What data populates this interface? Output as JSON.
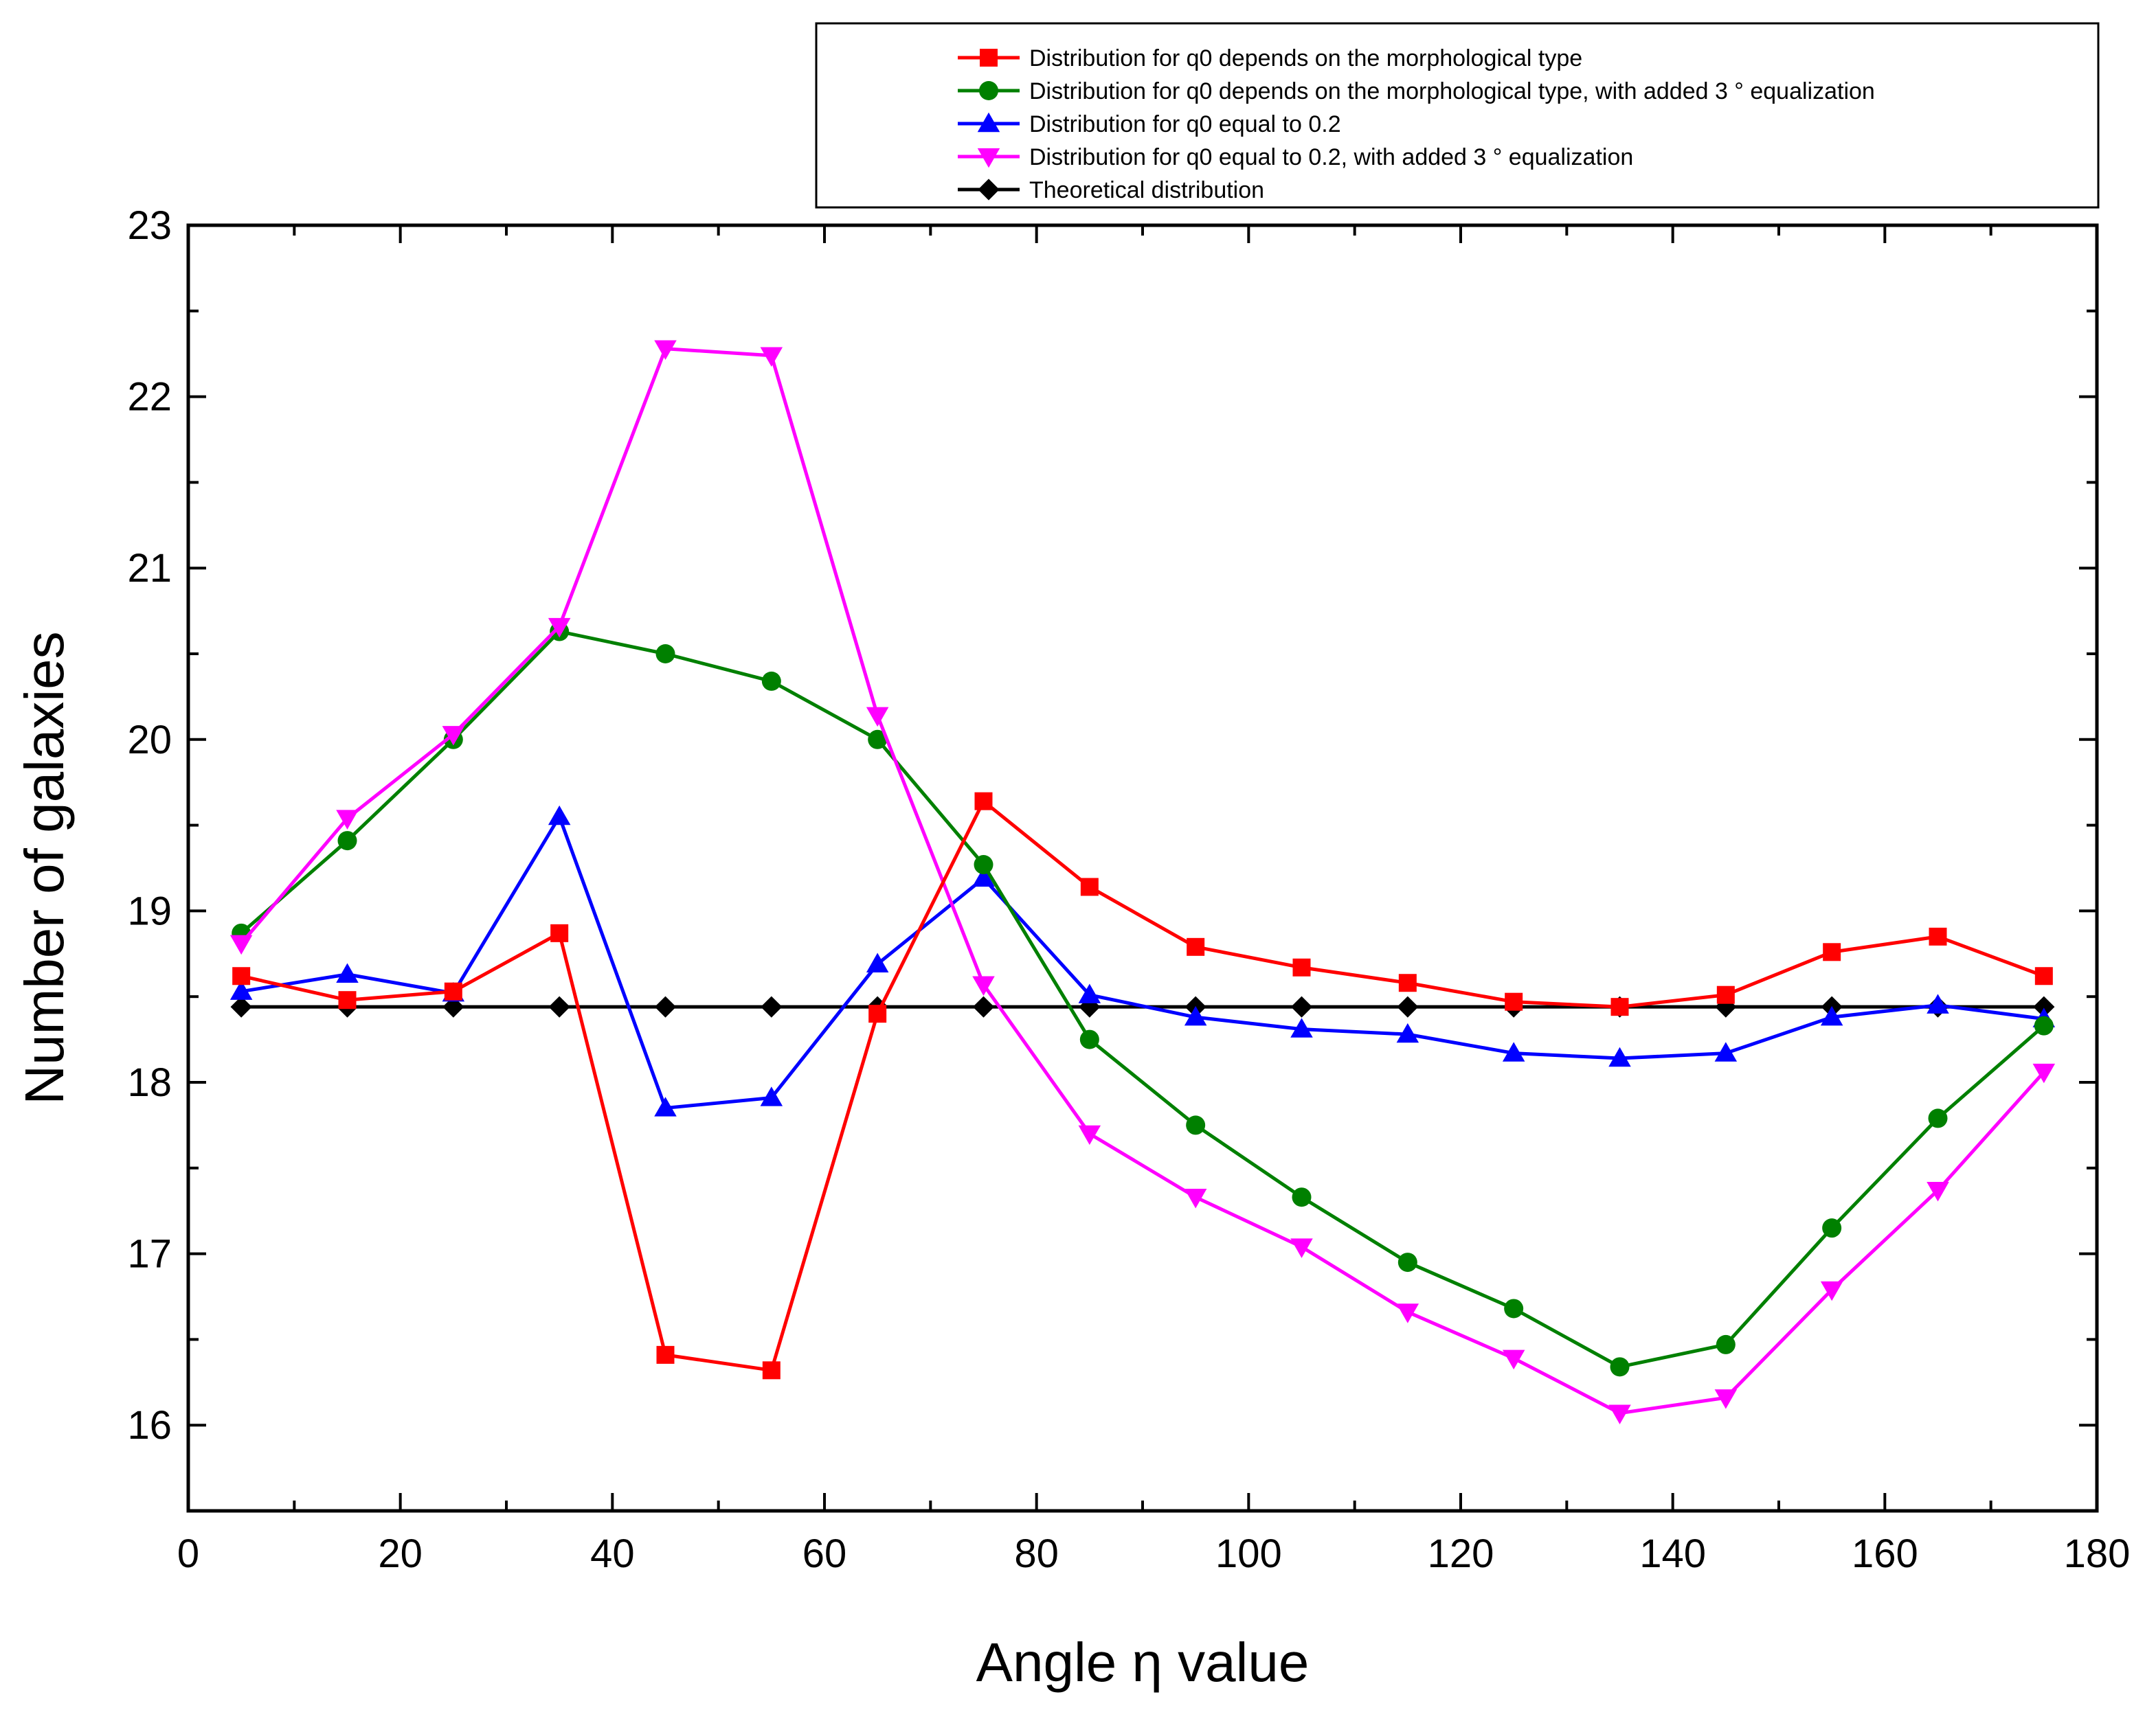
{
  "chart_data": {
    "type": "line",
    "title": "",
    "xlabel": "Angle η value",
    "ylabel": "Number of galaxies",
    "xlim": [
      0,
      180
    ],
    "ylim": [
      15.5,
      23
    ],
    "xticks": [
      0,
      20,
      40,
      60,
      80,
      100,
      120,
      140,
      160,
      180
    ],
    "yticks": [
      16,
      17,
      18,
      19,
      20,
      21,
      22,
      23
    ],
    "grid": false,
    "legend_position": "top-right",
    "x": [
      5,
      15,
      25,
      35,
      45,
      55,
      65,
      75,
      85,
      95,
      105,
      115,
      125,
      135,
      145,
      155,
      165,
      175
    ],
    "series": [
      {
        "name": "Distribution for q0 depends on the morphological type",
        "color": "#ff0000",
        "marker": "square",
        "values": [
          18.62,
          18.48,
          18.53,
          18.87,
          16.41,
          16.32,
          18.4,
          19.64,
          19.14,
          18.79,
          18.67,
          18.58,
          18.47,
          18.44,
          18.51,
          18.76,
          18.85,
          18.62
        ]
      },
      {
        "name": "Distribution for q0 depends on the morphological type, with added 3 ° equalization",
        "color": "#008000",
        "marker": "circle",
        "values": [
          18.87,
          19.41,
          20.0,
          20.63,
          20.5,
          20.34,
          20.0,
          19.27,
          18.25,
          17.75,
          17.33,
          16.95,
          16.68,
          16.34,
          16.47,
          17.15,
          17.79,
          18.33
        ]
      },
      {
        "name": "Distribution for q0 equal to 0.2",
        "color": "#0000ff",
        "marker": "triangle-up",
        "values": [
          18.53,
          18.63,
          18.52,
          19.55,
          17.85,
          17.91,
          18.69,
          19.19,
          18.51,
          18.38,
          18.31,
          18.28,
          18.17,
          18.14,
          18.17,
          18.38,
          18.45,
          18.37
        ]
      },
      {
        "name": "Distribution for q0 equal to 0.2, with added 3 ° equalization",
        "color": "#ff00ff",
        "marker": "triangle-down",
        "values": [
          18.81,
          19.54,
          20.03,
          20.66,
          22.28,
          22.24,
          20.14,
          18.57,
          17.7,
          17.33,
          17.04,
          16.66,
          16.39,
          16.07,
          16.16,
          16.79,
          17.37,
          18.06
        ]
      },
      {
        "name": "Theoretical distribution",
        "color": "#000000",
        "marker": "diamond",
        "values": [
          18.44,
          18.44,
          18.44,
          18.44,
          18.44,
          18.44,
          18.44,
          18.44,
          18.44,
          18.44,
          18.44,
          18.44,
          18.44,
          18.44,
          18.44,
          18.44,
          18.44,
          18.44
        ]
      }
    ]
  }
}
